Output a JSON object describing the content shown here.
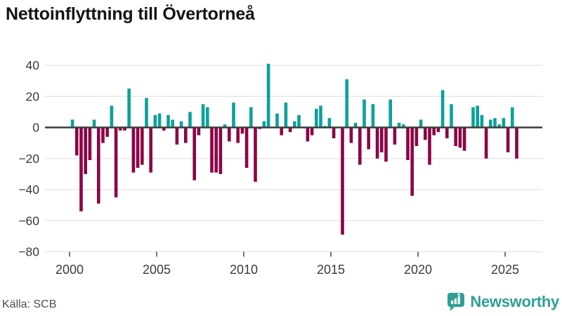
{
  "title": "Nettoinflyttning till Övertorneå",
  "source": "Källa: SCB",
  "logo": {
    "text": "Newsworthy"
  },
  "colors": {
    "positive": "#0ba19a",
    "negative": "#8c0345",
    "zero_axis": "#3d3d3d",
    "grid": "#e7e7e7",
    "title_text": "#141414",
    "axis_label": "#3a3a3a",
    "source_text": "#4d4d4d",
    "logo_teal": "#2f9f96"
  },
  "chart_data": {
    "type": "bar",
    "title": "Nettoinflyttning till Övertorneå",
    "frequency": "quarterly",
    "start": {
      "year": 2000,
      "quarter": 1
    },
    "end": {
      "year": 2025,
      "quarter": 3
    },
    "series_by_year": [
      {
        "year": 2000,
        "values": [
          5,
          -18,
          -54,
          -30
        ]
      },
      {
        "year": 2001,
        "values": [
          -21,
          5,
          -49,
          -10
        ]
      },
      {
        "year": 2002,
        "values": [
          -6,
          14,
          -45,
          -2
        ]
      },
      {
        "year": 2003,
        "values": [
          -2,
          25,
          -29,
          -26
        ]
      },
      {
        "year": 2004,
        "values": [
          -24,
          19,
          -29,
          8
        ]
      },
      {
        "year": 2005,
        "values": [
          9,
          -2,
          8,
          5
        ]
      },
      {
        "year": 2006,
        "values": [
          -11,
          4,
          -10,
          10
        ]
      },
      {
        "year": 2007,
        "values": [
          -34,
          -5,
          15,
          13
        ]
      },
      {
        "year": 2008,
        "values": [
          -29,
          -29,
          -30,
          2
        ]
      },
      {
        "year": 2009,
        "values": [
          -9,
          16,
          -10,
          -4
        ]
      },
      {
        "year": 2010,
        "values": [
          -26,
          13,
          -35,
          -1
        ]
      },
      {
        "year": 2011,
        "values": [
          4,
          41,
          0,
          9
        ]
      },
      {
        "year": 2012,
        "values": [
          -5,
          16,
          -3,
          4
        ]
      },
      {
        "year": 2013,
        "values": [
          8,
          0,
          -9,
          -5
        ]
      },
      {
        "year": 2014,
        "values": [
          12,
          14,
          1,
          6
        ]
      },
      {
        "year": 2015,
        "values": [
          -7,
          0,
          -69,
          31
        ]
      },
      {
        "year": 2016,
        "values": [
          -10,
          3,
          -24,
          18
        ]
      },
      {
        "year": 2017,
        "values": [
          -14,
          15,
          -20,
          -16
        ]
      },
      {
        "year": 2018,
        "values": [
          -22,
          18,
          -11,
          3
        ]
      },
      {
        "year": 2019,
        "values": [
          2,
          -21,
          -44,
          -12
        ]
      },
      {
        "year": 2020,
        "values": [
          5,
          -8,
          -24,
          -5
        ]
      },
      {
        "year": 2021,
        "values": [
          -3,
          24,
          -7,
          15
        ]
      },
      {
        "year": 2022,
        "values": [
          -12,
          -13,
          -15,
          0
        ]
      },
      {
        "year": 2023,
        "values": [
          13,
          14,
          8,
          -20
        ]
      },
      {
        "year": 2024,
        "values": [
          5,
          6,
          2,
          6
        ]
      },
      {
        "year": 2025,
        "values": [
          -16,
          13,
          -20
        ]
      }
    ],
    "x_tick_years": [
      "2000",
      "2005",
      "2010",
      "2015",
      "2020",
      "2025"
    ],
    "y_ticks": [
      40,
      20,
      0,
      -20,
      -40,
      -60,
      -80
    ],
    "ylim": [
      -80,
      45
    ],
    "xlabel": "",
    "ylabel": "",
    "grid": "horizontal",
    "legend": "none",
    "positive_color_meaning": "net in-migration",
    "negative_color_meaning": "net out-migration"
  }
}
